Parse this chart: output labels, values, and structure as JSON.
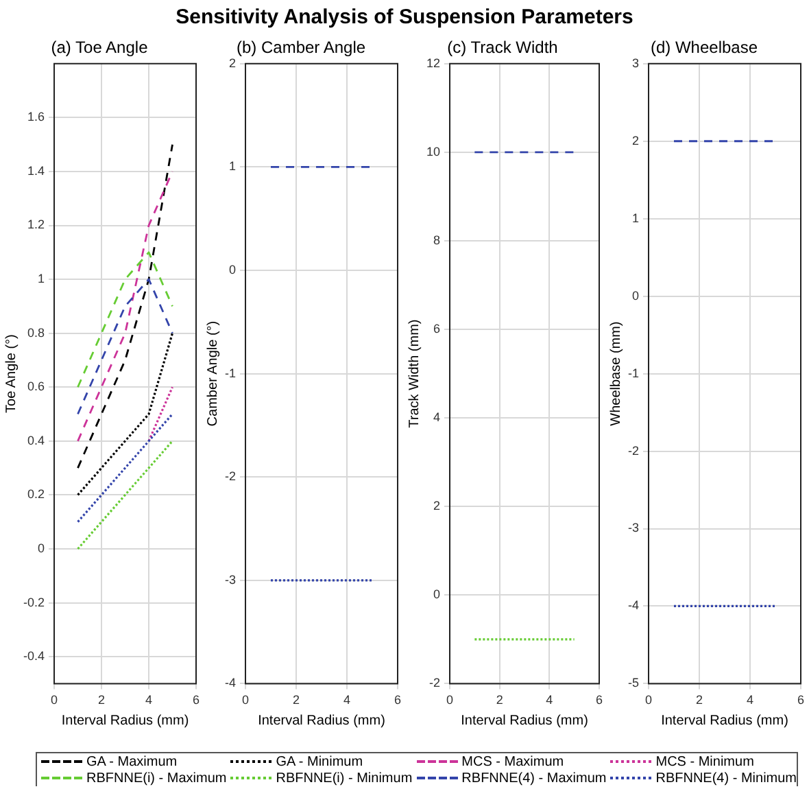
{
  "chart_data": [
    {
      "type": "line",
      "title": "Sensitivity Analysis of Suspension Parameters",
      "subtitle": "(a) Toe Angle",
      "xlabel": "Interval Radius (mm)",
      "ylabel": "Toe Angle (°)",
      "x": [
        1,
        2,
        3,
        4,
        5
      ],
      "xlim": [
        0,
        6
      ],
      "xticks": [
        0,
        2,
        4,
        6
      ],
      "ylim": [
        -0.5,
        1.8
      ],
      "yticks": [
        -0.4,
        -0.2,
        0,
        0.2,
        0.4,
        0.6,
        0.8,
        1,
        1.2,
        1.4,
        1.6
      ],
      "grid": true,
      "legend": "bottom",
      "marker": "none",
      "series": [
        {
          "name": "GA - Maximum",
          "color": "#000000",
          "line_style": "dashed",
          "values": [
            0.3,
            0.5,
            0.7,
            1.0,
            1.5
          ]
        },
        {
          "name": "GA - Minimum",
          "color": "#000000",
          "line_style": "dotted",
          "values": [
            0.2,
            0.3,
            0.4,
            0.5,
            0.8
          ]
        },
        {
          "name": "MCS - Maximum",
          "color": "#cc3399",
          "line_style": "dashed",
          "values": [
            0.4,
            0.6,
            0.8,
            1.2,
            1.4
          ]
        },
        {
          "name": "MCS - Minimum",
          "color": "#cc3399",
          "line_style": "dotted",
          "values": [
            null,
            null,
            null,
            0.4,
            0.6
          ]
        },
        {
          "name": "RBFNNE(i) - Maximum",
          "color": "#66cc33",
          "line_style": "dashed",
          "values": [
            0.6,
            0.8,
            1.0,
            1.1,
            0.9
          ]
        },
        {
          "name": "RBFNNE(i) - Minimum",
          "color": "#66cc33",
          "line_style": "dotted",
          "values": [
            0.0,
            0.1,
            0.2,
            0.3,
            0.4
          ]
        },
        {
          "name": "RBFNNE(4) - Maximum",
          "color": "#3344aa",
          "line_style": "dashed",
          "values": [
            0.5,
            0.7,
            0.9,
            1.0,
            0.8
          ]
        },
        {
          "name": "RBFNNE(4) - Minimum",
          "color": "#3344aa",
          "line_style": "dotted",
          "values": [
            0.1,
            0.2,
            0.3,
            0.4,
            0.5
          ]
        }
      ]
    },
    {
      "type": "line",
      "title": "(b) Camber Angle",
      "xlabel": "Interval Radius (mm)",
      "ylabel": "Camber Angle (°)",
      "x": [
        1,
        2,
        3,
        4,
        5
      ],
      "xlim": [
        0,
        6
      ],
      "xticks": [
        0,
        2,
        4,
        6
      ],
      "ylim": [
        -4,
        2
      ],
      "yticks": [
        -4,
        -3,
        -2,
        -1,
        0,
        1,
        2
      ],
      "grid": true,
      "marker": "none",
      "series": [
        {
          "color": "#3344aa",
          "line_style": "dashed",
          "values": [
            1,
            1,
            1,
            1,
            1
          ]
        },
        {
          "color": "#3344aa",
          "line_style": "dotted",
          "values": [
            -3,
            -3,
            -3,
            -3,
            -3
          ]
        }
      ]
    },
    {
      "type": "line",
      "title": "(c) Track Width",
      "xlabel": "Interval Radius (mm)",
      "ylabel": "Track Width (mm)",
      "x": [
        1,
        2,
        3,
        4,
        5
      ],
      "xlim": [
        0,
        6
      ],
      "xticks": [
        0,
        2,
        4,
        6
      ],
      "ylim": [
        -2,
        12
      ],
      "yticks": [
        -2,
        0,
        2,
        4,
        6,
        8,
        10,
        12
      ],
      "grid": true,
      "marker": "none",
      "series": [
        {
          "color": "#3344aa",
          "line_style": "dashed",
          "values": [
            10,
            10,
            10,
            10,
            10
          ]
        },
        {
          "color": "#66cc33",
          "line_style": "dotted",
          "values": [
            -1,
            -1,
            -1,
            -1,
            -1
          ]
        }
      ]
    },
    {
      "type": "line",
      "title": "(d) Wheelbase",
      "xlabel": "Interval Radius (mm)",
      "ylabel": "Wheelbase (mm)",
      "x": [
        1,
        2,
        3,
        4,
        5
      ],
      "xlim": [
        0,
        6
      ],
      "xticks": [
        0,
        2,
        4,
        6
      ],
      "ylim": [
        -5,
        3
      ],
      "yticks": [
        -5,
        -4,
        -3,
        -2,
        -1,
        0,
        1,
        2,
        3
      ],
      "grid": true,
      "marker": "none",
      "series": [
        {
          "color": "#3344aa",
          "line_style": "dashed",
          "values": [
            2,
            2,
            2,
            2,
            2
          ]
        },
        {
          "color": "#3344aa",
          "line_style": "dotted",
          "values": [
            -4,
            -4,
            -4,
            -4,
            -4
          ]
        }
      ]
    }
  ]
}
